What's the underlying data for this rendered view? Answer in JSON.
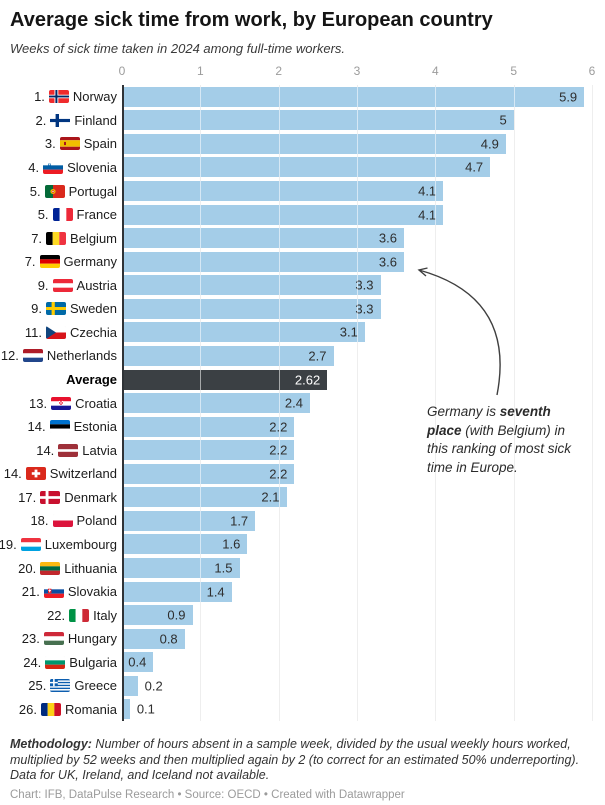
{
  "header": {
    "title": "Average sick time from work, by European country",
    "subtitle": "Weeks of sick time taken in 2024 among full-time workers."
  },
  "chart_data": {
    "type": "bar",
    "orientation": "horizontal",
    "title": "Average sick time from work, by European country",
    "subtitle": "Weeks of sick time taken in 2024 among full-time workers.",
    "unit": "weeks",
    "xlim": [
      0,
      6
    ],
    "x_ticks": [
      "0",
      "1",
      "2",
      "3",
      "4",
      "5",
      "6"
    ],
    "grid": true,
    "bar_color": "#a4cde8",
    "average_bar_color": "#3b4044",
    "rows": [
      {
        "rank": "1.",
        "country": "Norway",
        "flag": "norway",
        "value": 5.9,
        "label": "5.9"
      },
      {
        "rank": "2.",
        "country": "Finland",
        "flag": "finland",
        "value": 5,
        "label": "5"
      },
      {
        "rank": "3.",
        "country": "Spain",
        "flag": "spain",
        "value": 4.9,
        "label": "4.9"
      },
      {
        "rank": "4.",
        "country": "Slovenia",
        "flag": "slovenia",
        "value": 4.7,
        "label": "4.7"
      },
      {
        "rank": "5.",
        "country": "Portugal",
        "flag": "portugal",
        "value": 4.1,
        "label": "4.1"
      },
      {
        "rank": "5.",
        "country": "France",
        "flag": "france",
        "value": 4.1,
        "label": "4.1"
      },
      {
        "rank": "7.",
        "country": "Belgium",
        "flag": "belgium",
        "value": 3.6,
        "label": "3.6"
      },
      {
        "rank": "7.",
        "country": "Germany",
        "flag": "germany",
        "value": 3.6,
        "label": "3.6"
      },
      {
        "rank": "9.",
        "country": "Austria",
        "flag": "austria",
        "value": 3.3,
        "label": "3.3"
      },
      {
        "rank": "9.",
        "country": "Sweden",
        "flag": "sweden",
        "value": 3.3,
        "label": "3.3"
      },
      {
        "rank": "11.",
        "country": "Czechia",
        "flag": "czechia",
        "value": 3.1,
        "label": "3.1"
      },
      {
        "rank": "12.",
        "country": "Netherlands",
        "flag": "netherlands",
        "value": 2.7,
        "label": "2.7"
      },
      {
        "rank": "",
        "country": "Average",
        "flag": "",
        "value": 2.62,
        "label": "2.62",
        "average": true
      },
      {
        "rank": "13.",
        "country": "Croatia",
        "flag": "croatia",
        "value": 2.4,
        "label": "2.4"
      },
      {
        "rank": "14.",
        "country": "Estonia",
        "flag": "estonia",
        "value": 2.2,
        "label": "2.2"
      },
      {
        "rank": "14.",
        "country": "Latvia",
        "flag": "latvia",
        "value": 2.2,
        "label": "2.2"
      },
      {
        "rank": "14.",
        "country": "Switzerland",
        "flag": "switzerland",
        "value": 2.2,
        "label": "2.2"
      },
      {
        "rank": "17.",
        "country": "Denmark",
        "flag": "denmark",
        "value": 2.1,
        "label": "2.1"
      },
      {
        "rank": "18.",
        "country": "Poland",
        "flag": "poland",
        "value": 1.7,
        "label": "1.7"
      },
      {
        "rank": "19.",
        "country": "Luxembourg",
        "flag": "luxembourg",
        "value": 1.6,
        "label": "1.6"
      },
      {
        "rank": "20.",
        "country": "Lithuania",
        "flag": "lithuania",
        "value": 1.5,
        "label": "1.5"
      },
      {
        "rank": "21.",
        "country": "Slovakia",
        "flag": "slovakia",
        "value": 1.4,
        "label": "1.4"
      },
      {
        "rank": "22.",
        "country": "Italy",
        "flag": "italy",
        "value": 0.9,
        "label": "0.9"
      },
      {
        "rank": "23.",
        "country": "Hungary",
        "flag": "hungary",
        "value": 0.8,
        "label": "0.8"
      },
      {
        "rank": "24.",
        "country": "Bulgaria",
        "flag": "bulgaria",
        "value": 0.4,
        "label": "0.4"
      },
      {
        "rank": "25.",
        "country": "Greece",
        "flag": "greece",
        "value": 0.2,
        "label": "0.2"
      },
      {
        "rank": "26.",
        "country": "Romania",
        "flag": "romania",
        "value": 0.1,
        "label": "0.1"
      }
    ]
  },
  "annotation": {
    "part1": "Germany is ",
    "bold": "seventh place",
    "part2": " (with Belgium) in this ranking of most sick time in Europe."
  },
  "footer": {
    "methodology_label": "Methodology:",
    "methodology_text": " Number of hours absent in a sample week, divided by the usual weekly hours worked, multiplied by 52 weeks and then multiplied again by 2 (to correct for an estimated 50% underreporting). Data for UK, Ireland, and Iceland not available.",
    "credit": "Chart: IFB, DataPulse Research • Source: OECD • Created with Datawrapper"
  }
}
